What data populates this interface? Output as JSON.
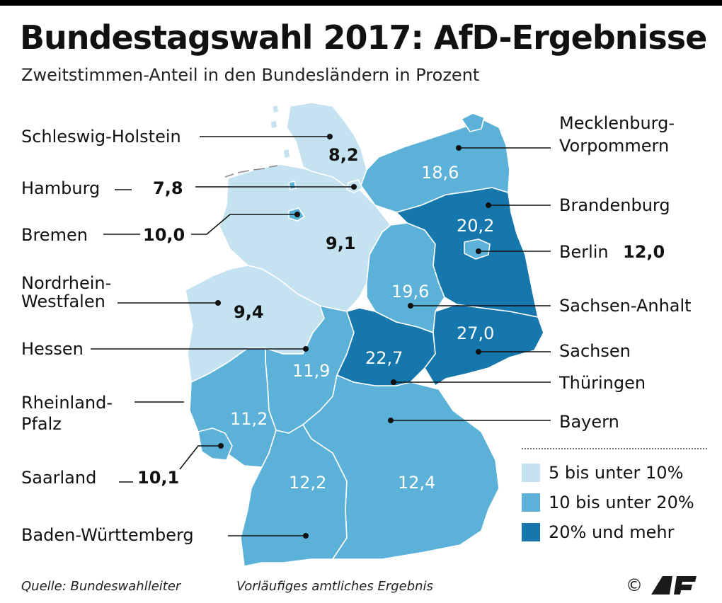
{
  "header": {
    "title": "Bundestagswahl 2017: AfD-Ergebnisse",
    "subtitle": "Zweitstimmen-Anteil in den Bundesländern in Prozent"
  },
  "colors": {
    "light": "#c5e2f0",
    "mid": "#5bb1d8",
    "dark": "#1677ad",
    "border": "#ffffff",
    "rivers": "#666666"
  },
  "states": [
    {
      "id": "sh",
      "label": "Schleswig-Holstein",
      "value": "8,2",
      "class": "light"
    },
    {
      "id": "hh",
      "label": "Hamburg",
      "value": "7,8",
      "class": "light"
    },
    {
      "id": "hb",
      "label": "Bremen",
      "value": "10,0",
      "class": "mid"
    },
    {
      "id": "ni",
      "label": "",
      "value": "9,1",
      "class": "light"
    },
    {
      "id": "nw",
      "label_line1": "Nordrhein-",
      "label_line2": "Westfalen",
      "value": "9,4",
      "class": "light"
    },
    {
      "id": "he",
      "label": "Hessen",
      "value": "11,9",
      "class": "mid"
    },
    {
      "id": "rp",
      "label_line1": "Rheinland-",
      "label_line2": "Pfalz",
      "value": "11,2",
      "class": "mid"
    },
    {
      "id": "sl",
      "label": "Saarland",
      "value": "10,1",
      "class": "mid"
    },
    {
      "id": "bw",
      "label": "Baden-Württemberg",
      "value": "12,2",
      "class": "mid"
    },
    {
      "id": "mv",
      "label_line1": "Mecklenburg-",
      "label_line2": "Vorpommern",
      "value": "18,6",
      "class": "mid"
    },
    {
      "id": "bb",
      "label": "Brandenburg",
      "value": "20,2",
      "class": "dark"
    },
    {
      "id": "be",
      "label": "Berlin",
      "value": "12,0",
      "class": "mid"
    },
    {
      "id": "st",
      "label": "Sachsen-Anhalt",
      "value": "19,6",
      "class": "mid"
    },
    {
      "id": "sn",
      "label": "Sachsen",
      "value": "27,0",
      "class": "dark"
    },
    {
      "id": "th",
      "label": "Thüringen",
      "value": "22,7",
      "class": "dark"
    },
    {
      "id": "by",
      "label": "Bayern",
      "value": "12,4",
      "class": "mid"
    }
  ],
  "legend": [
    {
      "label": "5 bis unter 10%",
      "color": "#c5e2f0"
    },
    {
      "label": "10 bis unter 20%",
      "color": "#5bb1d8"
    },
    {
      "label": "20% und mehr",
      "color": "#1677ad"
    }
  ],
  "footer": {
    "source": "Quelle: Bundeswahlleiter",
    "note": "Vorläufiges amtliches Ergebnis",
    "copyright": "©",
    "logo_text": "AFP"
  }
}
